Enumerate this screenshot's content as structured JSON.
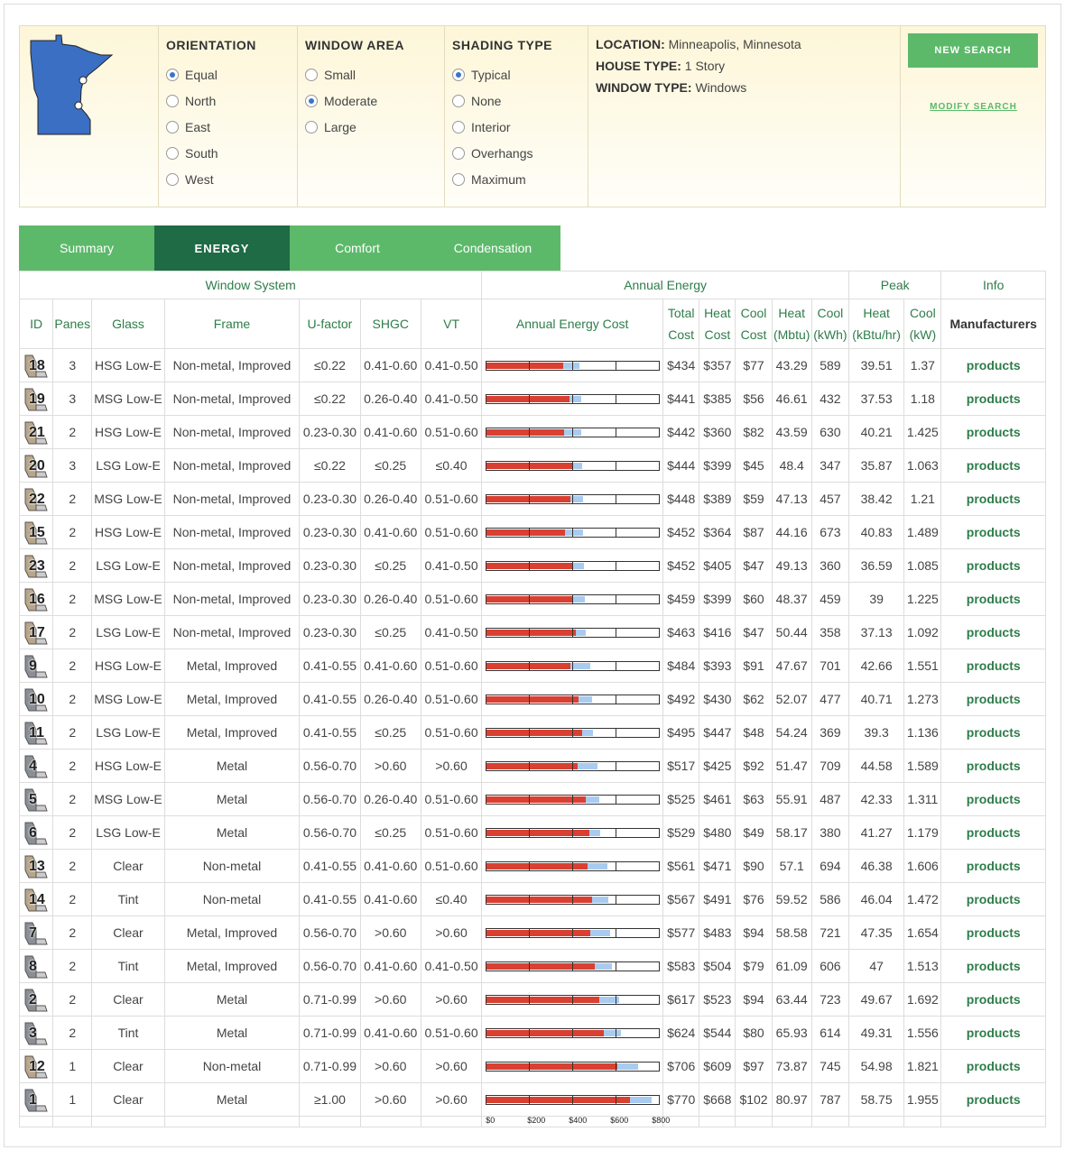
{
  "search": {
    "orientation": {
      "title": "ORIENTATION",
      "options": [
        {
          "label": "Equal",
          "selected": true
        },
        {
          "label": "North",
          "selected": false
        },
        {
          "label": "East",
          "selected": false
        },
        {
          "label": "South",
          "selected": false
        },
        {
          "label": "West",
          "selected": false
        }
      ]
    },
    "window_area": {
      "title": "WINDOW AREA",
      "options": [
        {
          "label": "Small",
          "selected": false
        },
        {
          "label": "Moderate",
          "selected": true
        },
        {
          "label": "Large",
          "selected": false
        }
      ]
    },
    "shading_type": {
      "title": "SHADING TYPE",
      "options": [
        {
          "label": "Typical",
          "selected": true
        },
        {
          "label": "None",
          "selected": false
        },
        {
          "label": "Interior",
          "selected": false
        },
        {
          "label": "Overhangs",
          "selected": false
        },
        {
          "label": "Maximum",
          "selected": false
        }
      ]
    },
    "info": {
      "location_label": "LOCATION:",
      "location": "Minneapolis, Minnesota",
      "house_label": "HOUSE TYPE:",
      "house": "1 Story",
      "window_label": "WINDOW TYPE:",
      "window": "Windows"
    },
    "new_search": "NEW SEARCH",
    "modify_search": "MODIFY SEARCH",
    "map_color": "#3a6fc4"
  },
  "tabs": [
    {
      "label": "Summary",
      "active": false
    },
    {
      "label": "ENERGY",
      "active": true
    },
    {
      "label": "Comfort",
      "active": false
    },
    {
      "label": "Condensation",
      "active": false
    }
  ],
  "table": {
    "groups": {
      "window_system": "Window System",
      "annual_energy": "Annual Energy",
      "peak": "Peak",
      "info": "Info"
    },
    "headers": {
      "id": "ID",
      "panes": "Panes",
      "glass": "Glass",
      "frame": "Frame",
      "ufactor": "U-factor",
      "shgc": "SHGC",
      "vt": "VT",
      "cost_bar": "Annual Energy Cost",
      "total_cost_1": "Total",
      "total_cost_2": "Cost",
      "heat_cost_1": "Heat",
      "heat_cost_2": "Cost",
      "cool_cost_1": "Cool",
      "cool_cost_2": "Cost",
      "heat_mbtu_1": "Heat",
      "heat_mbtu_2": "(Mbtu)",
      "cool_kwh_1": "Cool",
      "cool_kwh_2": "(kWh)",
      "peak_heat_1": "Heat",
      "peak_heat_2": "(kBtu/hr)",
      "peak_cool_1": "Cool",
      "peak_cool_2": "(kW)",
      "manufacturers": "Manufacturers"
    },
    "link_label": "products",
    "axis_labels": [
      "$0",
      "$200",
      "$400",
      "$600",
      "$800"
    ],
    "axis_max": 800,
    "colors": {
      "heat": "#d94032",
      "cool": "#a9cbf0",
      "accent": "#5cb96a",
      "accent_dark": "#1e6b45"
    },
    "rows": [
      {
        "id": "18",
        "panes": "3",
        "glass": "HSG Low-E",
        "frame": "Non-metal, Improved",
        "u": "≤0.22",
        "shgc": "0.41-0.60",
        "vt": "0.41-0.50",
        "total": "$434",
        "heat": "$357",
        "cool": "$77",
        "mbtu": "43.29",
        "kwh": "589",
        "pheat": "39.51",
        "pcool": "1.37",
        "ht": 357,
        "ct": 77,
        "frame_kind": "nonmetal"
      },
      {
        "id": "19",
        "panes": "3",
        "glass": "MSG Low-E",
        "frame": "Non-metal, Improved",
        "u": "≤0.22",
        "shgc": "0.26-0.40",
        "vt": "0.41-0.50",
        "total": "$441",
        "heat": "$385",
        "cool": "$56",
        "mbtu": "46.61",
        "kwh": "432",
        "pheat": "37.53",
        "pcool": "1.18",
        "ht": 385,
        "ct": 56,
        "frame_kind": "nonmetal"
      },
      {
        "id": "21",
        "panes": "2",
        "glass": "HSG Low-E",
        "frame": "Non-metal, Improved",
        "u": "0.23-0.30",
        "shgc": "0.41-0.60",
        "vt": "0.51-0.60",
        "total": "$442",
        "heat": "$360",
        "cool": "$82",
        "mbtu": "43.59",
        "kwh": "630",
        "pheat": "40.21",
        "pcool": "1.425",
        "ht": 360,
        "ct": 82,
        "frame_kind": "nonmetal"
      },
      {
        "id": "20",
        "panes": "3",
        "glass": "LSG Low-E",
        "frame": "Non-metal, Improved",
        "u": "≤0.22",
        "shgc": "≤0.25",
        "vt": "≤0.40",
        "total": "$444",
        "heat": "$399",
        "cool": "$45",
        "mbtu": "48.4",
        "kwh": "347",
        "pheat": "35.87",
        "pcool": "1.063",
        "ht": 399,
        "ct": 45,
        "frame_kind": "nonmetal"
      },
      {
        "id": "22",
        "panes": "2",
        "glass": "MSG Low-E",
        "frame": "Non-metal, Improved",
        "u": "0.23-0.30",
        "shgc": "0.26-0.40",
        "vt": "0.51-0.60",
        "total": "$448",
        "heat": "$389",
        "cool": "$59",
        "mbtu": "47.13",
        "kwh": "457",
        "pheat": "38.42",
        "pcool": "1.21",
        "ht": 389,
        "ct": 59,
        "frame_kind": "nonmetal"
      },
      {
        "id": "15",
        "panes": "2",
        "glass": "HSG Low-E",
        "frame": "Non-metal, Improved",
        "u": "0.23-0.30",
        "shgc": "0.41-0.60",
        "vt": "0.51-0.60",
        "total": "$452",
        "heat": "$364",
        "cool": "$87",
        "mbtu": "44.16",
        "kwh": "673",
        "pheat": "40.83",
        "pcool": "1.489",
        "ht": 364,
        "ct": 87,
        "frame_kind": "nonmetal"
      },
      {
        "id": "23",
        "panes": "2",
        "glass": "LSG Low-E",
        "frame": "Non-metal, Improved",
        "u": "0.23-0.30",
        "shgc": "≤0.25",
        "vt": "0.41-0.50",
        "total": "$452",
        "heat": "$405",
        "cool": "$47",
        "mbtu": "49.13",
        "kwh": "360",
        "pheat": "36.59",
        "pcool": "1.085",
        "ht": 405,
        "ct": 47,
        "frame_kind": "nonmetal"
      },
      {
        "id": "16",
        "panes": "2",
        "glass": "MSG Low-E",
        "frame": "Non-metal, Improved",
        "u": "0.23-0.30",
        "shgc": "0.26-0.40",
        "vt": "0.51-0.60",
        "total": "$459",
        "heat": "$399",
        "cool": "$60",
        "mbtu": "48.37",
        "kwh": "459",
        "pheat": "39",
        "pcool": "1.225",
        "ht": 399,
        "ct": 60,
        "frame_kind": "nonmetal"
      },
      {
        "id": "17",
        "panes": "2",
        "glass": "LSG Low-E",
        "frame": "Non-metal, Improved",
        "u": "0.23-0.30",
        "shgc": "≤0.25",
        "vt": "0.41-0.50",
        "total": "$463",
        "heat": "$416",
        "cool": "$47",
        "mbtu": "50.44",
        "kwh": "358",
        "pheat": "37.13",
        "pcool": "1.092",
        "ht": 416,
        "ct": 47,
        "frame_kind": "nonmetal"
      },
      {
        "id": "9",
        "panes": "2",
        "glass": "HSG Low-E",
        "frame": "Metal, Improved",
        "u": "0.41-0.55",
        "shgc": "0.41-0.60",
        "vt": "0.51-0.60",
        "total": "$484",
        "heat": "$393",
        "cool": "$91",
        "mbtu": "47.67",
        "kwh": "701",
        "pheat": "42.66",
        "pcool": "1.551",
        "ht": 393,
        "ct": 91,
        "frame_kind": "metal"
      },
      {
        "id": "10",
        "panes": "2",
        "glass": "MSG Low-E",
        "frame": "Metal, Improved",
        "u": "0.41-0.55",
        "shgc": "0.26-0.40",
        "vt": "0.51-0.60",
        "total": "$492",
        "heat": "$430",
        "cool": "$62",
        "mbtu": "52.07",
        "kwh": "477",
        "pheat": "40.71",
        "pcool": "1.273",
        "ht": 430,
        "ct": 62,
        "frame_kind": "metal"
      },
      {
        "id": "11",
        "panes": "2",
        "glass": "LSG Low-E",
        "frame": "Metal, Improved",
        "u": "0.41-0.55",
        "shgc": "≤0.25",
        "vt": "0.51-0.60",
        "total": "$495",
        "heat": "$447",
        "cool": "$48",
        "mbtu": "54.24",
        "kwh": "369",
        "pheat": "39.3",
        "pcool": "1.136",
        "ht": 447,
        "ct": 48,
        "frame_kind": "metal"
      },
      {
        "id": "4",
        "panes": "2",
        "glass": "HSG Low-E",
        "frame": "Metal",
        "u": "0.56-0.70",
        "shgc": ">0.60",
        "vt": ">0.60",
        "total": "$517",
        "heat": "$425",
        "cool": "$92",
        "mbtu": "51.47",
        "kwh": "709",
        "pheat": "44.58",
        "pcool": "1.589",
        "ht": 425,
        "ct": 92,
        "frame_kind": "metal"
      },
      {
        "id": "5",
        "panes": "2",
        "glass": "MSG Low-E",
        "frame": "Metal",
        "u": "0.56-0.70",
        "shgc": "0.26-0.40",
        "vt": "0.51-0.60",
        "total": "$525",
        "heat": "$461",
        "cool": "$63",
        "mbtu": "55.91",
        "kwh": "487",
        "pheat": "42.33",
        "pcool": "1.311",
        "ht": 461,
        "ct": 63,
        "frame_kind": "metal"
      },
      {
        "id": "6",
        "panes": "2",
        "glass": "LSG Low-E",
        "frame": "Metal",
        "u": "0.56-0.70",
        "shgc": "≤0.25",
        "vt": "0.51-0.60",
        "total": "$529",
        "heat": "$480",
        "cool": "$49",
        "mbtu": "58.17",
        "kwh": "380",
        "pheat": "41.27",
        "pcool": "1.179",
        "ht": 480,
        "ct": 49,
        "frame_kind": "metal"
      },
      {
        "id": "13",
        "panes": "2",
        "glass": "Clear",
        "frame": "Non-metal",
        "u": "0.41-0.55",
        "shgc": "0.41-0.60",
        "vt": "0.51-0.60",
        "total": "$561",
        "heat": "$471",
        "cool": "$90",
        "mbtu": "57.1",
        "kwh": "694",
        "pheat": "46.38",
        "pcool": "1.606",
        "ht": 471,
        "ct": 90,
        "frame_kind": "nonmetal"
      },
      {
        "id": "14",
        "panes": "2",
        "glass": "Tint",
        "frame": "Non-metal",
        "u": "0.41-0.55",
        "shgc": "0.41-0.60",
        "vt": "≤0.40",
        "total": "$567",
        "heat": "$491",
        "cool": "$76",
        "mbtu": "59.52",
        "kwh": "586",
        "pheat": "46.04",
        "pcool": "1.472",
        "ht": 491,
        "ct": 76,
        "frame_kind": "nonmetal"
      },
      {
        "id": "7",
        "panes": "2",
        "glass": "Clear",
        "frame": "Metal, Improved",
        "u": "0.56-0.70",
        "shgc": ">0.60",
        "vt": ">0.60",
        "total": "$577",
        "heat": "$483",
        "cool": "$94",
        "mbtu": "58.58",
        "kwh": "721",
        "pheat": "47.35",
        "pcool": "1.654",
        "ht": 483,
        "ct": 94,
        "frame_kind": "metal"
      },
      {
        "id": "8",
        "panes": "2",
        "glass": "Tint",
        "frame": "Metal, Improved",
        "u": "0.56-0.70",
        "shgc": "0.41-0.60",
        "vt": "0.41-0.50",
        "total": "$583",
        "heat": "$504",
        "cool": "$79",
        "mbtu": "61.09",
        "kwh": "606",
        "pheat": "47",
        "pcool": "1.513",
        "ht": 504,
        "ct": 79,
        "frame_kind": "metal"
      },
      {
        "id": "2",
        "panes": "2",
        "glass": "Clear",
        "frame": "Metal",
        "u": "0.71-0.99",
        "shgc": ">0.60",
        "vt": ">0.60",
        "total": "$617",
        "heat": "$523",
        "cool": "$94",
        "mbtu": "63.44",
        "kwh": "723",
        "pheat": "49.67",
        "pcool": "1.692",
        "ht": 523,
        "ct": 94,
        "frame_kind": "metal"
      },
      {
        "id": "3",
        "panes": "2",
        "glass": "Tint",
        "frame": "Metal",
        "u": "0.71-0.99",
        "shgc": "0.41-0.60",
        "vt": "0.51-0.60",
        "total": "$624",
        "heat": "$544",
        "cool": "$80",
        "mbtu": "65.93",
        "kwh": "614",
        "pheat": "49.31",
        "pcool": "1.556",
        "ht": 544,
        "ct": 80,
        "frame_kind": "metal"
      },
      {
        "id": "12",
        "panes": "1",
        "glass": "Clear",
        "frame": "Non-metal",
        "u": "0.71-0.99",
        "shgc": ">0.60",
        "vt": ">0.60",
        "total": "$706",
        "heat": "$609",
        "cool": "$97",
        "mbtu": "73.87",
        "kwh": "745",
        "pheat": "54.98",
        "pcool": "1.821",
        "ht": 609,
        "ct": 97,
        "frame_kind": "nonmetal"
      },
      {
        "id": "1",
        "panes": "1",
        "glass": "Clear",
        "frame": "Metal",
        "u": "≥1.00",
        "shgc": ">0.60",
        "vt": ">0.60",
        "total": "$770",
        "heat": "$668",
        "cool": "$102",
        "mbtu": "80.97",
        "kwh": "787",
        "pheat": "58.75",
        "pcool": "1.955",
        "ht": 668,
        "ct": 102,
        "frame_kind": "metal"
      }
    ]
  }
}
